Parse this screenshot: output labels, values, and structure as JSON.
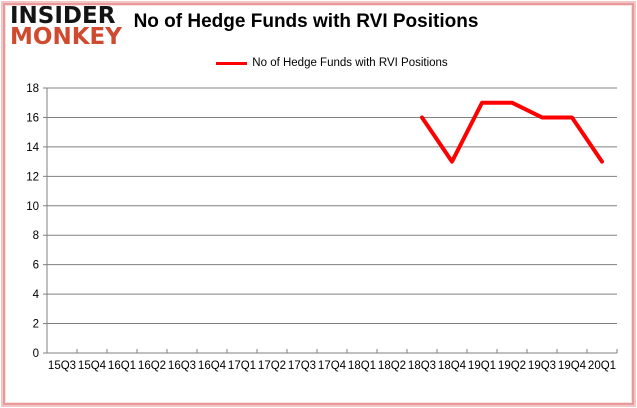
{
  "logo": {
    "line1": "INSIDER",
    "line2": "MONKEY"
  },
  "header": {
    "title": "No of Hedge Funds with RVI Positions"
  },
  "legend": {
    "label": "No of Hedge Funds with RVI Positions",
    "color": "#ff0000"
  },
  "colors": {
    "line_red": "#ff0000",
    "logo_red": "#d04a30",
    "grid_gray": "#808080",
    "frame_pink": "#e89a9a",
    "background": "#ffffff"
  },
  "chart_data": {
    "type": "line",
    "title": "No of Hedge Funds with RVI Positions",
    "xlabel": "",
    "ylabel": "",
    "categories": [
      "15Q3",
      "15Q4",
      "16Q1",
      "16Q2",
      "16Q3",
      "16Q4",
      "17Q1",
      "17Q2",
      "17Q3",
      "17Q4",
      "18Q1",
      "18Q2",
      "18Q3",
      "18Q4",
      "19Q1",
      "19Q2",
      "19Q3",
      "19Q4",
      "20Q1"
    ],
    "series": [
      {
        "name": "No of Hedge Funds with RVI Positions",
        "color": "#ff0000",
        "values": [
          null,
          null,
          null,
          null,
          null,
          null,
          null,
          null,
          null,
          null,
          null,
          null,
          16,
          13,
          17,
          17,
          16,
          16,
          13
        ]
      }
    ],
    "ylim": [
      0,
      18
    ],
    "ytick_step": 2,
    "grid": "horizontal",
    "legend_position": "top-center"
  }
}
